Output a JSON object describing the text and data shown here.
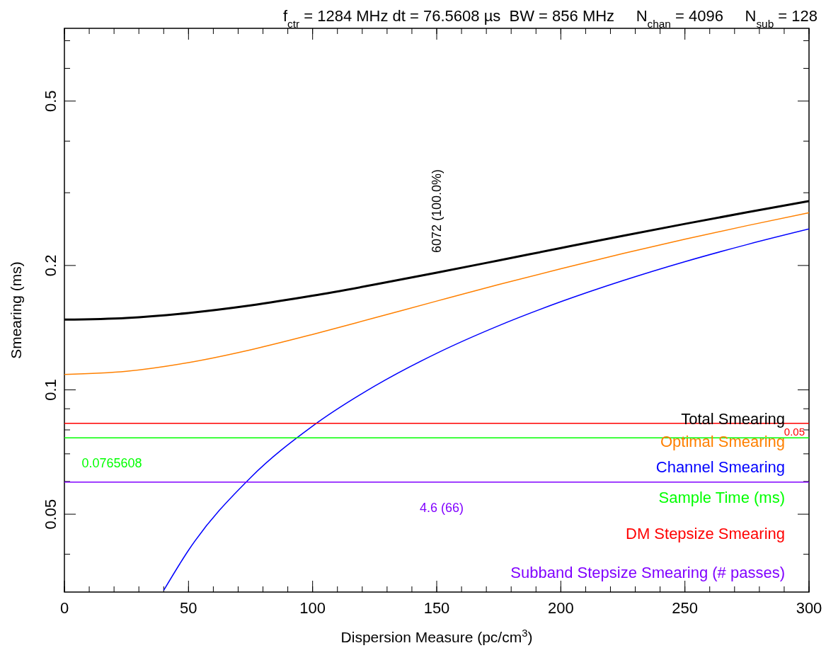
{
  "chart_data": {
    "type": "line",
    "title": "f$_{ctr}$ = 1284 MHz dt = 76.5608 µs  BW = 856 MHz     N$_{chan}$ = 4096     N$_{sub}$ = 128",
    "xlabel": "Dispersion Measure (pc/cm$^{3}$)",
    "ylabel": "Smearing (ms)",
    "xlim": [
      0,
      300
    ],
    "xticks": [
      0,
      50,
      100,
      150,
      200,
      250,
      300
    ],
    "ylim": [
      0.0324,
      0.75
    ],
    "yticks": [
      {
        "value": 0.04,
        "label": null
      },
      0.05,
      {
        "value": 0.06,
        "label": null
      },
      {
        "value": 0.07,
        "label": null
      },
      {
        "value": 0.08,
        "label": null
      },
      {
        "value": 0.09,
        "label": null
      },
      0.1,
      0.2,
      {
        "value": 0.3,
        "label": null
      },
      {
        "value": 0.4,
        "label": null
      },
      0.5,
      {
        "value": 0.6,
        "label": null
      },
      {
        "value": 0.7,
        "label": null
      }
    ],
    "log": "y",
    "grid": false,
    "legend": "bottom right",
    "marker": "none",
    "line_style": "solid",
    "series": [
      {
        "name": "Total Smearing",
        "color": "#000000",
        "x": [
          0,
          25,
          50,
          75,
          100,
          125,
          150,
          175,
          200,
          225,
          250,
          275,
          300
        ],
        "values": [
          0.1479,
          0.1493,
          0.1535,
          0.1601,
          0.169,
          0.1798,
          0.1921,
          0.2057,
          0.2204,
          0.236,
          0.2522,
          0.269,
          0.2863
        ]
      },
      {
        "name": "Optimal Smearing",
        "color": "#ff8000",
        "x": [
          0,
          25,
          50,
          75,
          100,
          125,
          150,
          175,
          200,
          225,
          250,
          275,
          300
        ],
        "values": [
          0.109,
          0.1109,
          0.1164,
          0.125,
          0.1362,
          0.1494,
          0.164,
          0.1798,
          0.1964,
          0.2137,
          0.2315,
          0.2497,
          0.2683
        ]
      },
      {
        "name": "Channel Smearing",
        "color": "#0000ff",
        "x": [
          40,
          50,
          75,
          100,
          125,
          150,
          175,
          200,
          225,
          250,
          275,
          300
        ],
        "values": [
          0.0327,
          0.0409,
          0.0613,
          0.0817,
          0.1021,
          0.1226,
          0.143,
          0.1634,
          0.1838,
          0.2043,
          0.2247,
          0.2451
        ]
      },
      {
        "name": "Sample Time (ms)",
        "color": "#00ff00",
        "x": [
          0,
          300
        ],
        "values": [
          0.0765608,
          0.0765608
        ]
      },
      {
        "name": "DM Stepsize Smearing",
        "color": "#ff0000",
        "x": [
          0,
          300
        ],
        "values": [
          0.083,
          0.083
        ]
      },
      {
        "name": "Subband Stepsize Smearing (# passes)",
        "color": "#8000ff",
        "x": [
          0,
          300
        ],
        "values": [
          0.0598,
          0.0598
        ]
      }
    ],
    "annotations": [
      {
        "text": "0.0765608",
        "x": 7,
        "y": 0.0765608
      },
      {
        "text": "0.05",
        "x": 300,
        "y": 0.083
      },
      {
        "text": "4.6 (66)",
        "x": 152,
        "y": 0.0598
      },
      {
        "text": "6072 (100.0%)",
        "x": 150,
        "y": 0.1921
      }
    ]
  }
}
